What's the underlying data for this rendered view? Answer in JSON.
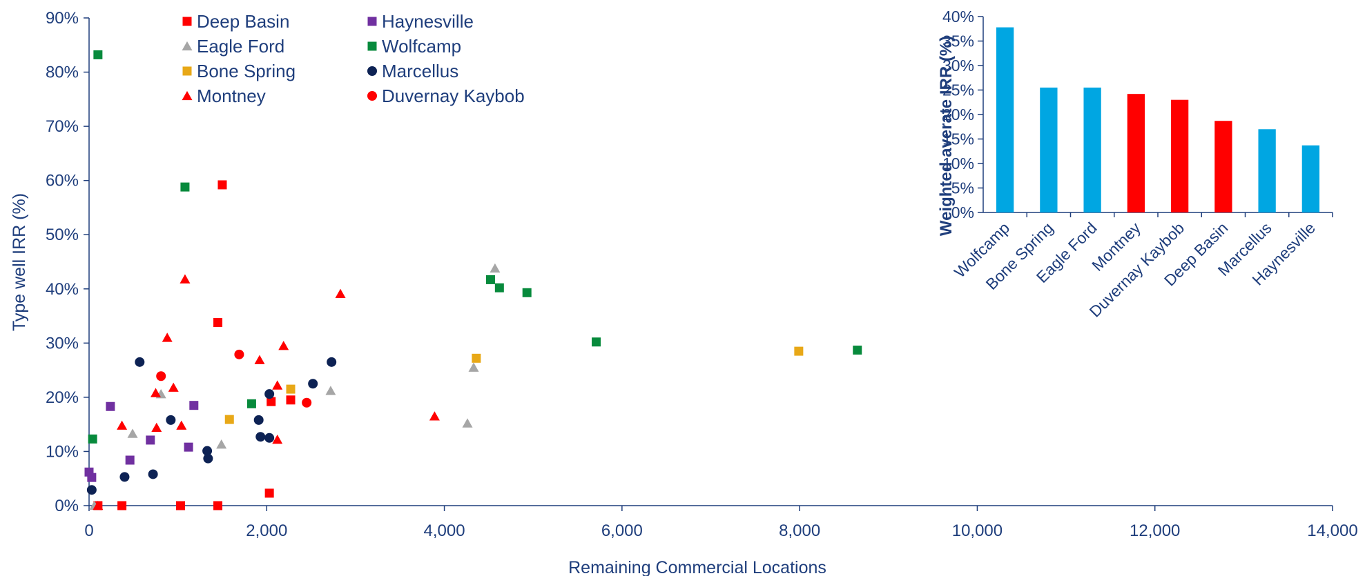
{
  "colors": {
    "axis": "#1f3e7c",
    "red": "#ff0000",
    "grey": "#a6a6a6",
    "gold": "#e8a817",
    "purple": "#7030a0",
    "green": "#078a3c",
    "navy": "#0d2254",
    "blue": "#00a6e2"
  },
  "chart_data": [
    {
      "type": "scatter",
      "title": "",
      "xlabel": "Remaining Commercial Locations",
      "ylabel": "Type well IRR (%)",
      "xlim": [
        0,
        14000
      ],
      "ylim": [
        0,
        90
      ],
      "x_ticks": [
        "0",
        "2,000",
        "4,000",
        "6,000",
        "8,000",
        "10,000",
        "12,000",
        "14,000"
      ],
      "y_ticks": [
        "0%",
        "10%",
        "20%",
        "30%",
        "40%",
        "50%",
        "60%",
        "70%",
        "80%",
        "90%"
      ],
      "legend_position": "top-left",
      "grid": false,
      "series": [
        {
          "name": "Deep Basin",
          "marker": "square",
          "color": "#ff0000",
          "points": [
            [
              1500,
              59.2
            ],
            [
              1450,
              33.8
            ],
            [
              2050,
              19.2
            ],
            [
              2270,
              19.5
            ],
            [
              2030,
              2.3
            ],
            [
              100,
              0
            ],
            [
              370,
              0
            ],
            [
              1030,
              0
            ],
            [
              1450,
              0
            ]
          ]
        },
        {
          "name": "Eagle Ford",
          "marker": "triangle",
          "color": "#a6a6a6",
          "points": [
            [
              60,
              0
            ],
            [
              490,
              13.3
            ],
            [
              810,
              20.6
            ],
            [
              1490,
              11.3
            ],
            [
              2720,
              21.2
            ],
            [
              4260,
              15.2
            ],
            [
              4330,
              25.5
            ],
            [
              4570,
              43.8
            ]
          ]
        },
        {
          "name": "Bone Spring",
          "marker": "square",
          "color": "#e8a817",
          "points": [
            [
              1580,
              15.9
            ],
            [
              2270,
              21.5
            ],
            [
              4360,
              27.2
            ],
            [
              7990,
              28.5
            ]
          ]
        },
        {
          "name": "Montney",
          "marker": "triangle",
          "color": "#ff0000",
          "points": [
            [
              100,
              0
            ],
            [
              370,
              14.8
            ],
            [
              750,
              20.8
            ],
            [
              760,
              14.4
            ],
            [
              880,
              31.0
            ],
            [
              950,
              21.8
            ],
            [
              1040,
              14.8
            ],
            [
              1080,
              41.8
            ],
            [
              1920,
              26.9
            ],
            [
              2120,
              12.2
            ],
            [
              2120,
              22.2
            ],
            [
              2190,
              29.5
            ],
            [
              2830,
              39.1
            ],
            [
              3890,
              16.5
            ]
          ]
        },
        {
          "name": "Haynesville",
          "marker": "square",
          "color": "#7030a0",
          "points": [
            [
              0,
              6.2
            ],
            [
              30,
              5.2
            ],
            [
              240,
              18.3
            ],
            [
              460,
              8.4
            ],
            [
              690,
              12.1
            ],
            [
              1120,
              10.8
            ],
            [
              1180,
              18.5
            ]
          ]
        },
        {
          "name": "Wolfcamp",
          "marker": "square",
          "color": "#078a3c",
          "points": [
            [
              40,
              12.3
            ],
            [
              100,
              83.2
            ],
            [
              1080,
              58.8
            ],
            [
              1830,
              18.8
            ],
            [
              4520,
              41.7
            ],
            [
              4620,
              40.2
            ],
            [
              4930,
              39.3
            ],
            [
              5710,
              30.2
            ],
            [
              8650,
              28.7
            ]
          ]
        },
        {
          "name": "Marcellus",
          "marker": "circle",
          "color": "#0d2254",
          "points": [
            [
              30,
              2.9
            ],
            [
              400,
              5.3
            ],
            [
              570,
              26.5
            ],
            [
              720,
              5.8
            ],
            [
              920,
              15.8
            ],
            [
              1330,
              10.1
            ],
            [
              1340,
              8.7
            ],
            [
              1910,
              15.8
            ],
            [
              1930,
              12.7
            ],
            [
              2030,
              20.6
            ],
            [
              2030,
              12.5
            ],
            [
              2520,
              22.5
            ],
            [
              2730,
              26.5
            ]
          ]
        },
        {
          "name": "Duvernay Kaybob",
          "marker": "circle",
          "color": "#ff0000",
          "points": [
            [
              810,
              23.9
            ],
            [
              1690,
              27.9
            ],
            [
              2450,
              19.0
            ]
          ]
        }
      ]
    },
    {
      "type": "bar",
      "title": "",
      "xlabel": "",
      "ylabel": "Weighted averate IRR (%)",
      "ylim": [
        0,
        40
      ],
      "y_ticks": [
        "0%",
        "5%",
        "10%",
        "15%",
        "20%",
        "25%",
        "30%",
        "35%",
        "40%"
      ],
      "categories": [
        "Wolfcamp",
        "Bone Spring",
        "Eagle Ford",
        "Montney",
        "Duvernay Kaybob",
        "Deep Basin",
        "Marcellus",
        "Haynesville"
      ],
      "values": [
        37.8,
        25.5,
        25.5,
        24.2,
        23.0,
        18.7,
        17.0,
        13.7
      ],
      "bar_colors": [
        "#00a6e2",
        "#00a6e2",
        "#00a6e2",
        "#ff0000",
        "#ff0000",
        "#ff0000",
        "#00a6e2",
        "#00a6e2"
      ]
    }
  ]
}
